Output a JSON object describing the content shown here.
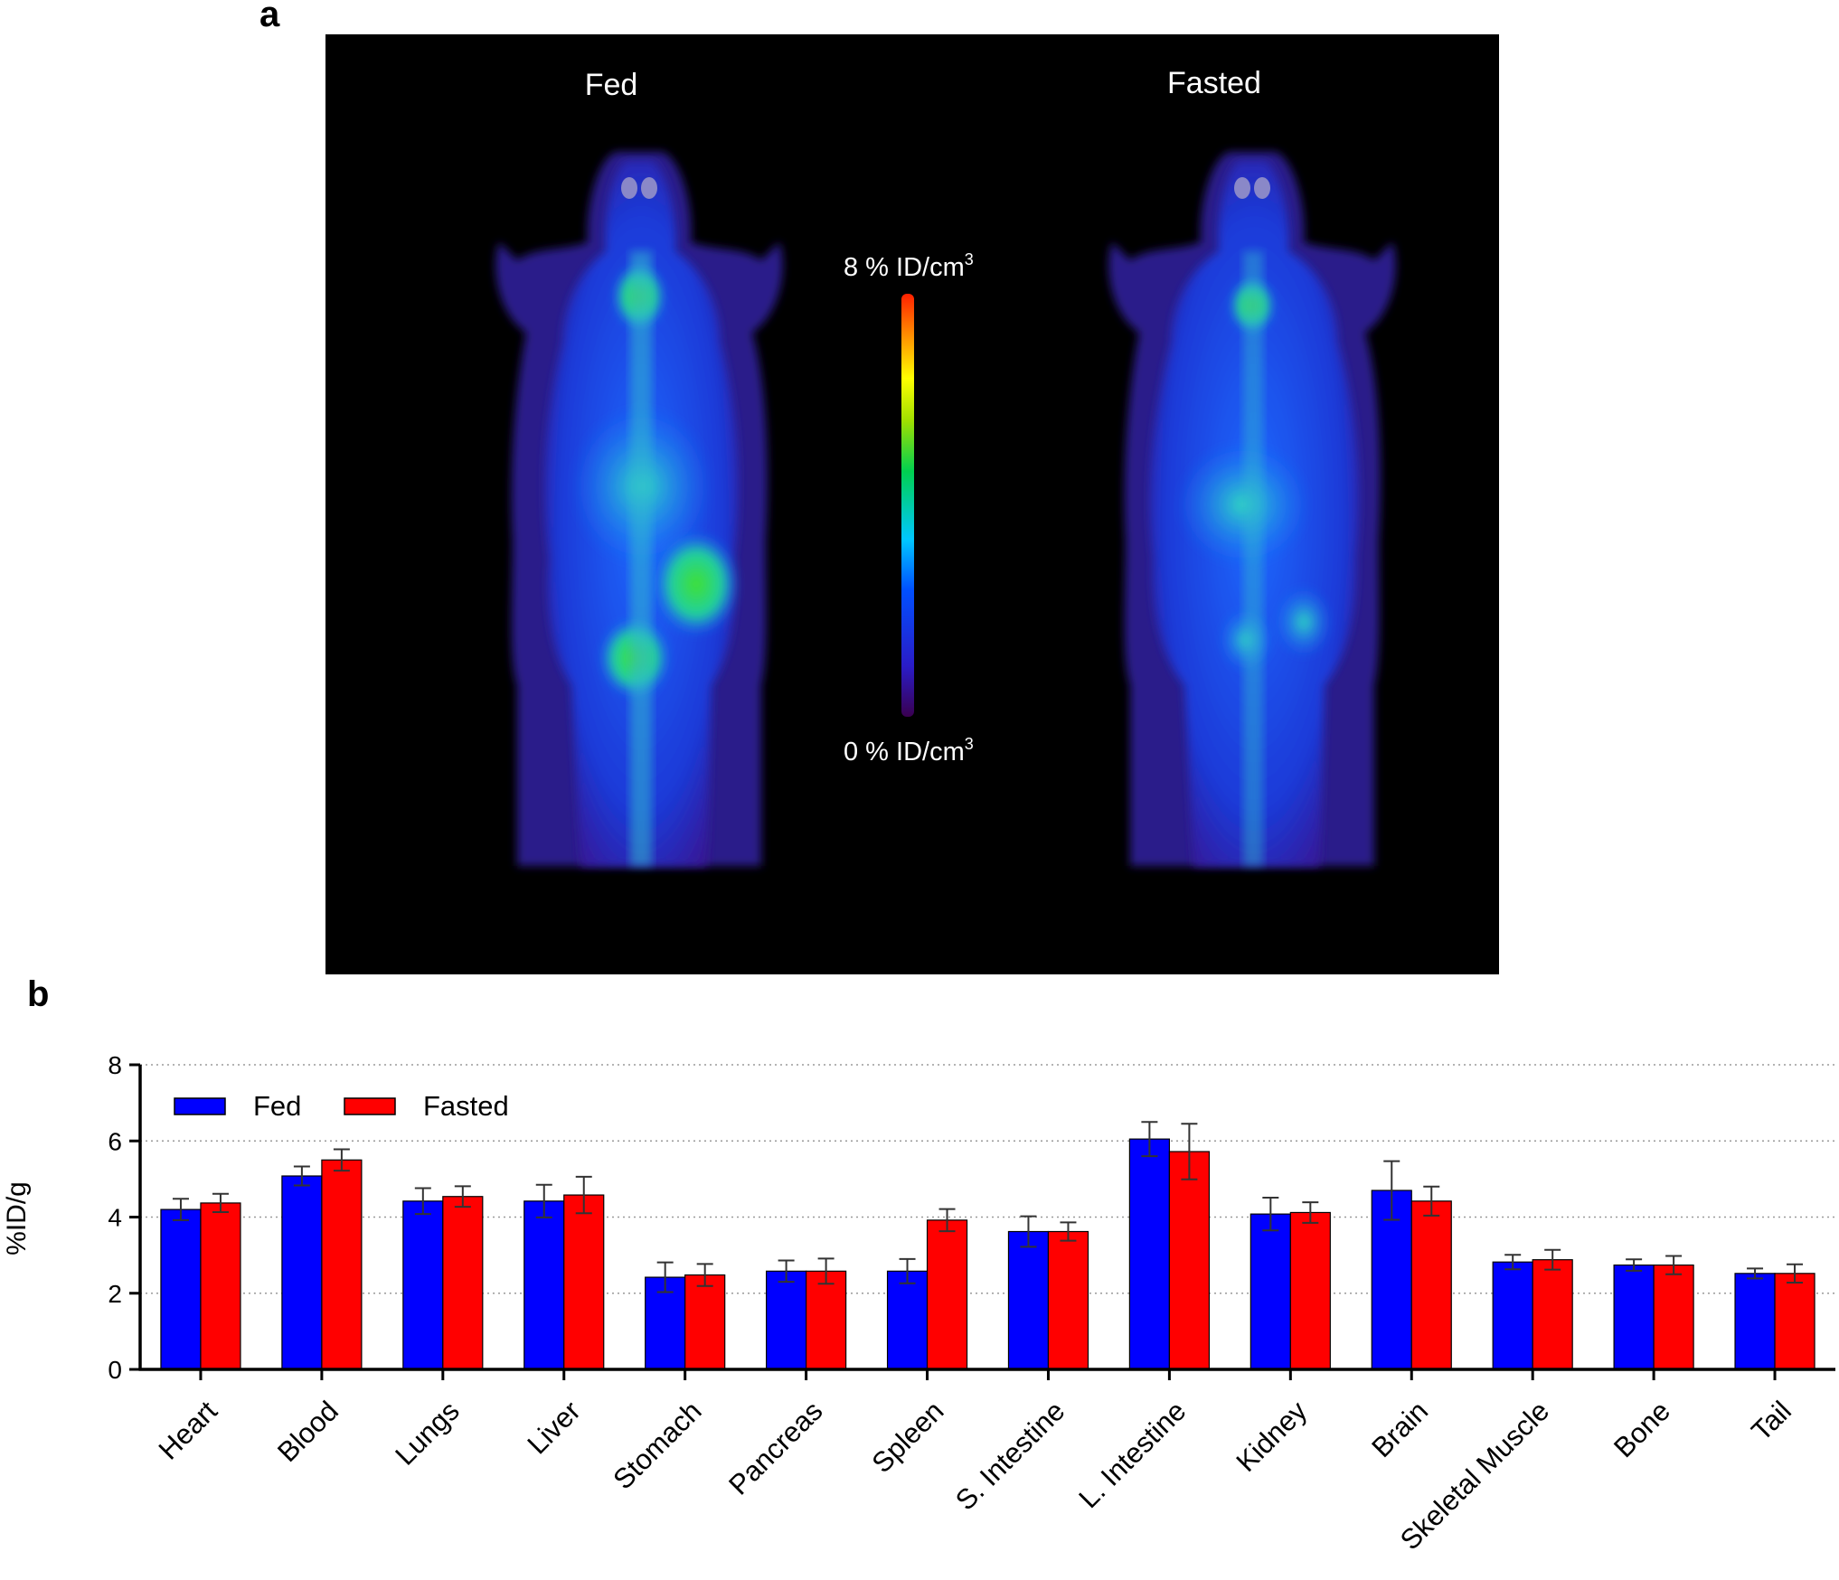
{
  "panel_a": {
    "label": "a",
    "left_title": "Fed",
    "right_title": "Fasted",
    "colorbar_max": "8 % ID/cm",
    "colorbar_min": "0 % ID/cm",
    "colorbar_sup": "3",
    "colors": {
      "background": "#000000",
      "colormap": [
        "#3a0050",
        "#2a1cc8",
        "#0050ff",
        "#00c8ff",
        "#00d050",
        "#a0e000",
        "#ffff00",
        "#ff9000",
        "#ff2000"
      ]
    }
  },
  "panel_b": {
    "label": "b"
  },
  "chart_data": {
    "type": "bar",
    "ylabel": "%ID/g",
    "xlabel": "",
    "ylim": [
      0,
      8
    ],
    "yticks": [
      0,
      2,
      4,
      6,
      8
    ],
    "grid": "horizontal dotted",
    "legend_position": "top-left",
    "categories": [
      "Heart",
      "Blood",
      "Lungs",
      "Liver",
      "Stomach",
      "Pancreas",
      "Spleen",
      "S. Intestine",
      "L. Intestine",
      "Kidney",
      "Brain",
      "Skeletal Muscle",
      "Bone",
      "Tail"
    ],
    "series": [
      {
        "name": "Fed",
        "color": "#0000ff",
        "values": [
          4.2,
          5.08,
          4.42,
          4.42,
          2.42,
          2.58,
          2.58,
          3.62,
          6.05,
          4.08,
          4.7,
          2.82,
          2.74,
          2.52
        ],
        "errors": [
          0.28,
          0.25,
          0.34,
          0.43,
          0.39,
          0.28,
          0.32,
          0.4,
          0.45,
          0.43,
          0.77,
          0.19,
          0.15,
          0.13
        ]
      },
      {
        "name": "Fasted",
        "color": "#ff0000",
        "values": [
          4.37,
          5.5,
          4.54,
          4.58,
          2.48,
          2.58,
          3.92,
          3.62,
          5.72,
          4.12,
          4.42,
          2.88,
          2.74,
          2.52
        ],
        "errors": [
          0.24,
          0.28,
          0.27,
          0.48,
          0.29,
          0.33,
          0.29,
          0.24,
          0.73,
          0.27,
          0.38,
          0.26,
          0.24,
          0.24
        ]
      }
    ]
  }
}
